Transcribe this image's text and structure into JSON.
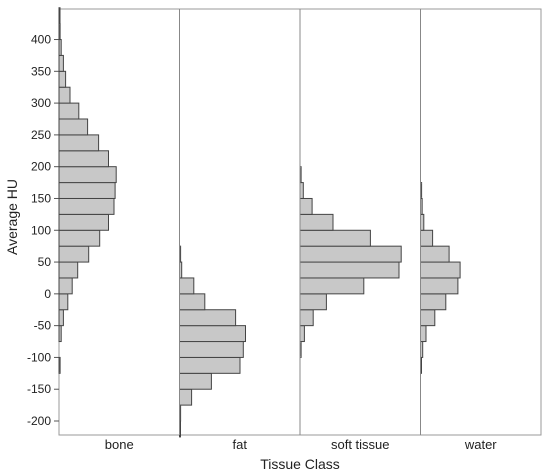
{
  "chart_data": {
    "type": "bar",
    "orientation": "horizontal-histogram",
    "xlabel": "Tissue Class",
    "ylabel": "Average HU",
    "ylim": [
      -222,
      448
    ],
    "y_ticks": [
      -200,
      -150,
      -100,
      -50,
      0,
      50,
      100,
      150,
      200,
      250,
      300,
      350,
      400
    ],
    "bin_width": 25,
    "categories": [
      "bone",
      "fat",
      "soft tissue",
      "water"
    ],
    "colors": {
      "bar_fill": "#c8c8c8",
      "bar_stroke": "#444444",
      "frame": "#9a9a9a",
      "divider": "#888888"
    },
    "series": [
      {
        "name": "bone",
        "bins": [
          {
            "y0": -125,
            "count": 0.01
          },
          {
            "y0": -75,
            "count": 0.02
          },
          {
            "y0": -50,
            "count": 0.04
          },
          {
            "y0": -25,
            "count": 0.08
          },
          {
            "y0": 0,
            "count": 0.12
          },
          {
            "y0": 25,
            "count": 0.17
          },
          {
            "y0": 50,
            "count": 0.27
          },
          {
            "y0": 75,
            "count": 0.37
          },
          {
            "y0": 100,
            "count": 0.45
          },
          {
            "y0": 125,
            "count": 0.5
          },
          {
            "y0": 150,
            "count": 0.51
          },
          {
            "y0": 175,
            "count": 0.52
          },
          {
            "y0": 200,
            "count": 0.45
          },
          {
            "y0": 225,
            "count": 0.36
          },
          {
            "y0": 250,
            "count": 0.26
          },
          {
            "y0": 275,
            "count": 0.18
          },
          {
            "y0": 300,
            "count": 0.1
          },
          {
            "y0": 325,
            "count": 0.06
          },
          {
            "y0": 350,
            "count": 0.04
          },
          {
            "y0": 375,
            "count": 0.02
          },
          {
            "y0": 400,
            "count": 0.01
          },
          {
            "y0": 425,
            "count": 0.005
          }
        ]
      },
      {
        "name": "fat",
        "bins": [
          {
            "y0": -225,
            "count": 0.005
          },
          {
            "y0": -200,
            "count": 0.01
          },
          {
            "y0": -175,
            "count": 0.11
          },
          {
            "y0": -150,
            "count": 0.29
          },
          {
            "y0": -125,
            "count": 0.55
          },
          {
            "y0": -100,
            "count": 0.58
          },
          {
            "y0": -75,
            "count": 0.6
          },
          {
            "y0": -50,
            "count": 0.51
          },
          {
            "y0": -25,
            "count": 0.23
          },
          {
            "y0": 0,
            "count": 0.13
          },
          {
            "y0": 25,
            "count": 0.02
          },
          {
            "y0": 50,
            "count": 0.01
          }
        ]
      },
      {
        "name": "soft tissue",
        "bins": [
          {
            "y0": -100,
            "count": 0.01
          },
          {
            "y0": -75,
            "count": 0.04
          },
          {
            "y0": -50,
            "count": 0.12
          },
          {
            "y0": -25,
            "count": 0.24
          },
          {
            "y0": 0,
            "count": 0.58
          },
          {
            "y0": 25,
            "count": 0.9
          },
          {
            "y0": 50,
            "count": 0.92
          },
          {
            "y0": 75,
            "count": 0.64
          },
          {
            "y0": 100,
            "count": 0.3
          },
          {
            "y0": 125,
            "count": 0.11
          },
          {
            "y0": 150,
            "count": 0.03
          },
          {
            "y0": 175,
            "count": 0.01
          }
        ]
      },
      {
        "name": "water",
        "bins": [
          {
            "y0": -125,
            "count": 0.005
          },
          {
            "y0": -100,
            "count": 0.02
          },
          {
            "y0": -75,
            "count": 0.05
          },
          {
            "y0": -50,
            "count": 0.13
          },
          {
            "y0": -25,
            "count": 0.23
          },
          {
            "y0": 0,
            "count": 0.34
          },
          {
            "y0": 25,
            "count": 0.36
          },
          {
            "y0": 50,
            "count": 0.26
          },
          {
            "y0": 75,
            "count": 0.11
          },
          {
            "y0": 100,
            "count": 0.03
          },
          {
            "y0": 125,
            "count": 0.015
          },
          {
            "y0": 150,
            "count": 0.01
          }
        ]
      }
    ]
  }
}
